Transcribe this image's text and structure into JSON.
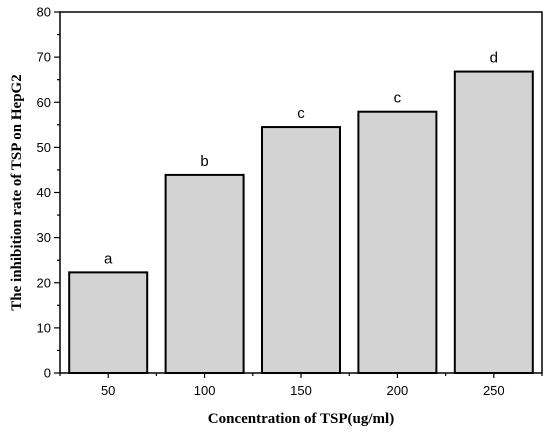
{
  "chart_data": {
    "type": "bar",
    "categories": [
      "50",
      "100",
      "150",
      "200",
      "250"
    ],
    "values": [
      22.3,
      43.9,
      54.5,
      57.9,
      66.8
    ],
    "bar_labels": [
      "a",
      "b",
      "c",
      "c",
      "d"
    ],
    "xlabel": "Concentration of TSP(ug/ml)",
    "ylabel": "The inhibition rate of TSP on HepG2",
    "ylim": [
      0,
      80
    ],
    "yticks": [
      0,
      10,
      20,
      30,
      40,
      50,
      60,
      70,
      80
    ],
    "grid": false,
    "bar_color": "#d3d3d3",
    "edge_color": "#000000"
  }
}
